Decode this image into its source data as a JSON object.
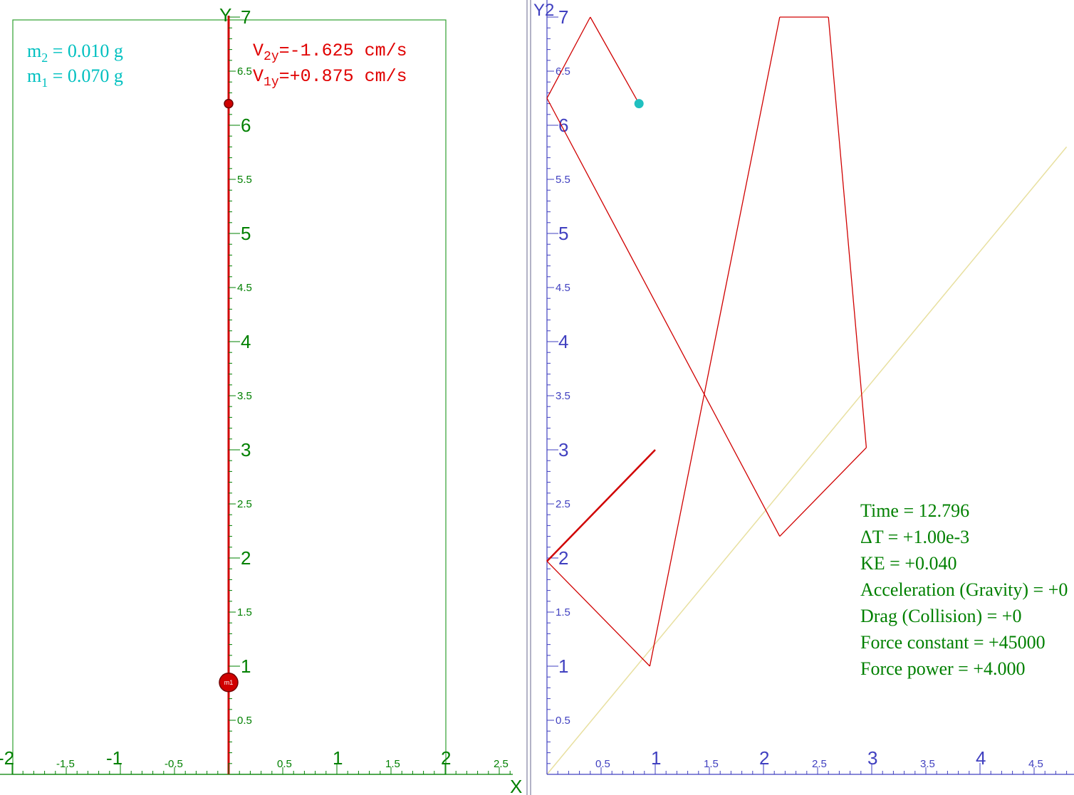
{
  "left_panel": {
    "masses": {
      "m2": {
        "sym": "m",
        "sub": "2",
        "text": " = 0.010 g"
      },
      "m1": {
        "sym": "m",
        "sub": "1",
        "text": " = 0.070 g"
      }
    },
    "velocities": {
      "v2": {
        "sym": "V",
        "sub": "2y",
        "text": "=-1.625 cm/s"
      },
      "v1": {
        "sym": "V",
        "sub": "1y",
        "text": "=+0.875 cm/s"
      }
    },
    "ball_label": "m1",
    "colors": {
      "axis": "#008000",
      "text_mass": "#00c0c0",
      "text_vel": "#e00000",
      "track": "#d00000"
    }
  },
  "right_panel": {
    "stats": [
      "Time = 12.796",
      "ΔT = +1.00e-3",
      "KE = +0.040",
      "Acceleration (Gravity) = +0",
      "Drag (Collision) = +0",
      "Force constant = +45000",
      "Force power = +4.000"
    ],
    "colors": {
      "axis": "#4040c0",
      "text": "#008000",
      "path": "#d00000",
      "diag": "#e8e0a0",
      "dot": "#20c0c0"
    }
  },
  "chart_data": [
    {
      "type": "scatter",
      "xlabel": "X",
      "ylabel": "Y",
      "xlim": [
        -2,
        2.7
      ],
      "ylim": [
        0,
        7
      ],
      "x_ticks_major": [
        "-2",
        "-1",
        "1",
        "2"
      ],
      "x_ticks_minor": [
        "-1.5",
        "-0.5",
        "0.5",
        "1.5",
        "2.5"
      ],
      "y_ticks_major": [
        "1",
        "2",
        "3",
        "4",
        "5",
        "6",
        "7"
      ],
      "y_ticks_minor": [
        "0.5",
        "1.5",
        "2.5",
        "3.5",
        "4.5",
        "5.5",
        "6.5"
      ],
      "box": {
        "x": [
          -2,
          2
        ],
        "y": [
          0,
          7
        ]
      },
      "points": [
        {
          "name": "m2",
          "x": 0,
          "y": 6.2
        },
        {
          "name": "m1",
          "x": 0,
          "y": 0.85
        }
      ]
    },
    {
      "type": "line",
      "xlabel": "",
      "ylabel": "Y2",
      "xlim": [
        0,
        4.8
      ],
      "ylim": [
        0,
        7
      ],
      "x_ticks_major": [
        "1",
        "2",
        "3",
        "4"
      ],
      "x_ticks_minor": [
        "0.5",
        "1.5",
        "2.5",
        "3.5",
        "4.5"
      ],
      "y_ticks_major": [
        "1",
        "2",
        "3",
        "4",
        "5",
        "6",
        "7"
      ],
      "y_ticks_minor": [
        "0.5",
        "1.5",
        "2.5",
        "3.5",
        "4.5",
        "5.5",
        "6.5"
      ],
      "series": [
        {
          "x": [
            1.0,
            0.0,
            0.95,
            2.15,
            2.6,
            2.95,
            2.15,
            0.0,
            0.4,
            0.85
          ],
          "y": [
            3.0,
            1.97,
            1.0,
            7.0,
            7.0,
            3.02,
            2.2,
            6.25,
            7.0,
            6.2
          ]
        }
      ],
      "diagonal": {
        "x": [
          0,
          4.8
        ],
        "y": [
          0,
          5.8
        ]
      },
      "current_point": {
        "x": 0.85,
        "y": 6.2
      }
    }
  ]
}
